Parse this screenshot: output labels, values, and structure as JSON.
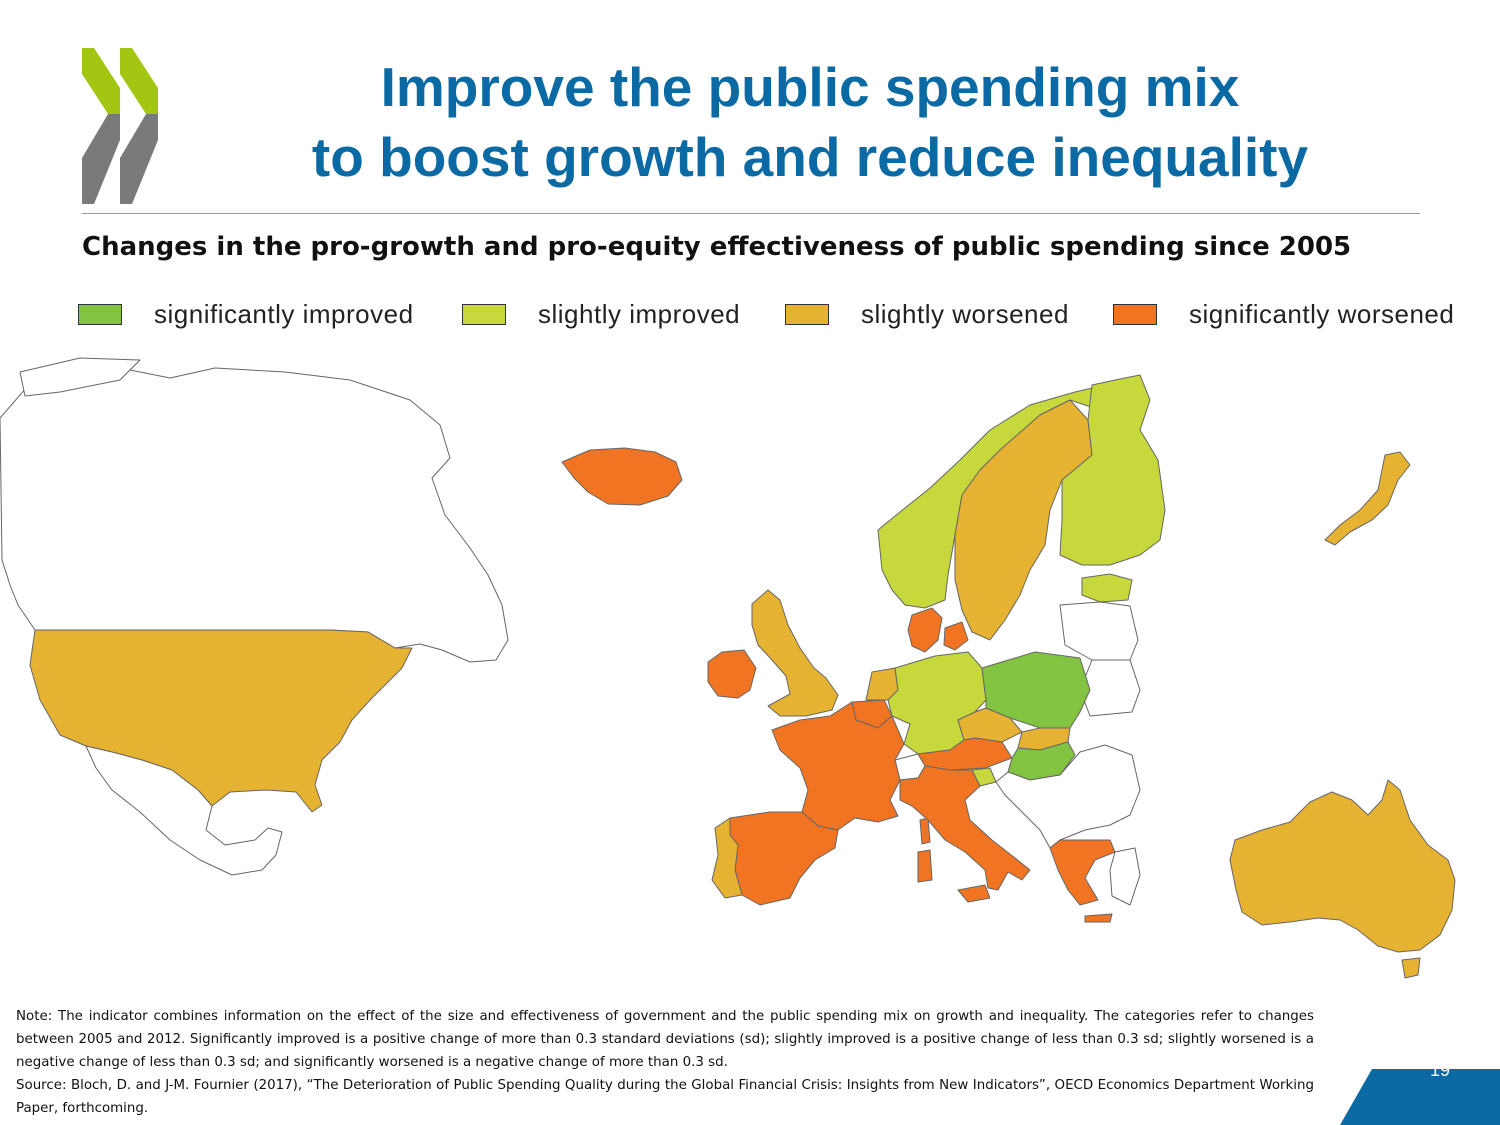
{
  "slide": {
    "title_line1": "Improve the public spending mix",
    "title_line2": "to boost growth and reduce inequality",
    "subtitle": "Changes in the pro-growth and pro-equity effectiveness of public spending since 2005",
    "page_number": "19",
    "logo": {
      "colors": {
        "green": "#a3c613",
        "grey": "#7a7a7a"
      }
    }
  },
  "legend": [
    {
      "label": "significantly improved",
      "color": "#82c341"
    },
    {
      "label": "slightly improved",
      "color": "#c6d83b"
    },
    {
      "label": "slightly worsened",
      "color": "#e6b232"
    },
    {
      "label": "significantly worsened",
      "color": "#f07422"
    }
  ],
  "map": {
    "no_data_color": "#ffffff",
    "regions": [
      {
        "name": "Canada",
        "category": "no data"
      },
      {
        "name": "United States",
        "category": "slightly worsened"
      },
      {
        "name": "Mexico",
        "category": "no data"
      },
      {
        "name": "Iceland",
        "category": "significantly worsened"
      },
      {
        "name": "Ireland",
        "category": "significantly worsened"
      },
      {
        "name": "United Kingdom",
        "category": "slightly worsened"
      },
      {
        "name": "Norway",
        "category": "slightly improved"
      },
      {
        "name": "Sweden",
        "category": "slightly worsened"
      },
      {
        "name": "Finland",
        "category": "slightly improved"
      },
      {
        "name": "Estonia",
        "category": "slightly improved"
      },
      {
        "name": "Denmark",
        "category": "significantly worsened"
      },
      {
        "name": "Netherlands",
        "category": "slightly worsened"
      },
      {
        "name": "Belgium",
        "category": "significantly worsened"
      },
      {
        "name": "Germany",
        "category": "slightly improved"
      },
      {
        "name": "Poland",
        "category": "significantly improved"
      },
      {
        "name": "Czech Republic",
        "category": "slightly worsened"
      },
      {
        "name": "Slovak Republic",
        "category": "slightly worsened"
      },
      {
        "name": "Hungary",
        "category": "significantly improved"
      },
      {
        "name": "Austria",
        "category": "significantly worsened"
      },
      {
        "name": "Slovenia",
        "category": "slightly improved"
      },
      {
        "name": "France",
        "category": "significantly worsened"
      },
      {
        "name": "Switzerland",
        "category": "no data"
      },
      {
        "name": "Italy",
        "category": "significantly worsened"
      },
      {
        "name": "Spain",
        "category": "significantly worsened"
      },
      {
        "name": "Portugal",
        "category": "slightly worsened"
      },
      {
        "name": "Greece",
        "category": "significantly worsened"
      },
      {
        "name": "Japan",
        "category": "slightly worsened"
      },
      {
        "name": "Australia",
        "category": "slightly worsened"
      }
    ]
  },
  "notes": {
    "note": "Note: The indicator combines information on the effect of the size and effectiveness of government and the public spending mix on growth and inequality. The categories refer to changes between 2005 and 2012. Significantly improved is a positive change of more than 0.3 standard deviations (sd); slightly improved is a positive change of less than 0.3 sd; slightly worsened is a negative change of less than 0.3 sd; and significantly worsened is a negative change of more than 0.3 sd.",
    "source": "Source: Bloch, D. and J-M. Fournier (2017), “The Deterioration of Public Spending Quality during the Global Financial Crisis: Insights from New Indicators”, OECD Economics Department Working Paper, forthcoming."
  },
  "footer": {
    "tab_color": "#0b6aa4"
  }
}
